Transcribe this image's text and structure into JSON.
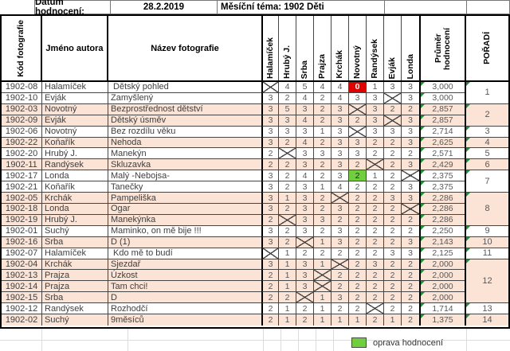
{
  "header_bar": {
    "datum_label": "Datum hodnocení:",
    "datum_value": "28.2.2019",
    "tema": "Měsíční téma: 1902 Děti"
  },
  "table": {
    "col_headers": {
      "code": "Kód fotografie",
      "author": "Jméno autora",
      "title": "Název fotografie",
      "judges": [
        "Halamíček",
        "Hrubý J.",
        "Srba",
        "Prajza",
        "Krchák",
        "Novotný",
        "Randýsek",
        "Evják",
        "Londa"
      ],
      "average": "Průměr hodnocení",
      "rank": "POŘADÍ"
    },
    "rows": [
      {
        "code": "1902-08",
        "author": "Halamíček",
        "title": " Dětský pohled",
        "scores": [
          "X",
          "4",
          "5",
          "4",
          "4",
          {
            "v": "0",
            "hl": "red"
          },
          "1",
          "3",
          "3"
        ],
        "avg": "3,000",
        "shade": false,
        "rank": {
          "label": "1",
          "span": 2
        }
      },
      {
        "code": "1902-10",
        "author": "Evják",
        "title": "Zamyšlený",
        "scores": [
          "3",
          "2",
          "4",
          "2",
          "4",
          "3",
          "3",
          "X",
          "3"
        ],
        "avg": "3,000",
        "shade": false
      },
      {
        "code": "1902-03",
        "author": "Novotný",
        "title": "Bezprostřednost dětství",
        "scores": [
          "3",
          "5",
          "3",
          "2",
          "3",
          "X",
          "3",
          "2",
          "2"
        ],
        "avg": "2,857",
        "shade": true,
        "rank": {
          "label": "2",
          "span": 2
        }
      },
      {
        "code": "1902-09",
        "author": "Evják",
        "title": "Dětský úsměv",
        "scores": [
          "3",
          "3",
          "4",
          "2",
          "3",
          "2",
          "3",
          "X",
          "3"
        ],
        "avg": "2,857",
        "shade": true
      },
      {
        "code": "1902-06",
        "author": "Novotný",
        "title": "Bez rozdílu věku",
        "scores": [
          "3",
          "3",
          "3",
          "1",
          "3",
          "X",
          "3",
          "3",
          "3"
        ],
        "avg": "2,714",
        "shade": false,
        "rank": {
          "label": "3",
          "span": 1
        }
      },
      {
        "code": "1902-22",
        "author": "Koňařík",
        "title": "Nehoda",
        "scores": [
          "3",
          "2",
          "4",
          "2",
          "3",
          "3",
          "2",
          "2",
          "3"
        ],
        "avg": "2,625",
        "shade": true,
        "rank": {
          "label": "4",
          "span": 1
        }
      },
      {
        "code": "1902-20",
        "author": "Hrubý J.",
        "title": "Manekýn",
        "scores": [
          "2",
          "X",
          "3",
          "3",
          "3",
          "3",
          "2",
          "2",
          "2"
        ],
        "avg": "2,571",
        "shade": false,
        "rank": {
          "label": "5",
          "span": 1
        }
      },
      {
        "code": "1902-11",
        "author": "Randýsek",
        "title": "Skluzavka",
        "scores": [
          "2",
          "2",
          "3",
          "2",
          "3",
          "2",
          "X",
          "2",
          "3"
        ],
        "avg": "2,429",
        "shade": true,
        "rank": {
          "label": "6",
          "span": 1
        }
      },
      {
        "code": "1902-17",
        "author": "Londa",
        "title": "Malý -Nebojsa-",
        "scores": [
          "3",
          "2",
          "4",
          "2",
          "3",
          {
            "v": "2",
            "hl": "green"
          },
          "1",
          "2",
          "X"
        ],
        "avg": "2,375",
        "shade": false,
        "rank": {
          "label": "7",
          "span": 2
        }
      },
      {
        "code": "1902-21",
        "author": "Koňařík",
        "title": "Tanečky",
        "scores": [
          "3",
          "2",
          "3",
          "1",
          "4",
          "2",
          "2",
          "2",
          "3"
        ],
        "avg": "2,375",
        "shade": false
      },
      {
        "code": "1902-05",
        "author": "Krchák",
        "title": "Pampeliška",
        "scores": [
          "3",
          "1",
          "3",
          "2",
          "X",
          "2",
          "2",
          "3",
          "3"
        ],
        "avg": "2,286",
        "shade": true,
        "rank": {
          "label": "8",
          "span": 3
        }
      },
      {
        "code": "1902-18",
        "author": "Londa",
        "title": "Ogar",
        "scores": [
          "3",
          "2",
          "3",
          "2",
          "3",
          "2",
          "2",
          "2",
          "X"
        ],
        "avg": "2,286",
        "shade": true
      },
      {
        "code": "1902-19",
        "author": "Hrubý J.",
        "title": "Manekýnka",
        "scores": [
          "2",
          "X",
          "3",
          "3",
          "2",
          "2",
          "2",
          "2",
          "2"
        ],
        "avg": "2,286",
        "shade": true
      },
      {
        "code": "1902-01",
        "author": "Suchý",
        "title": "Maminko, on mě bije !!!",
        "scores": [
          "3",
          "2",
          "3",
          "2",
          "3",
          "2",
          "2",
          "2",
          "2"
        ],
        "avg": "2,250",
        "shade": false,
        "rank": {
          "label": "9",
          "span": 1
        }
      },
      {
        "code": "1902-16",
        "author": "Srba",
        "title": "D (1)",
        "scores": [
          "3",
          "2",
          "X",
          "1",
          "3",
          "2",
          "2",
          "2",
          "3"
        ],
        "avg": "2,143",
        "shade": true,
        "rank": {
          "label": "10",
          "span": 1
        }
      },
      {
        "code": "1902-07",
        "author": "Halamíček",
        "title": " Kdo mě to budí",
        "scores": [
          "X",
          "1",
          "2",
          "2",
          "2",
          "2",
          "2",
          "3",
          "3"
        ],
        "avg": "2,125",
        "shade": false,
        "rank": {
          "label": "11",
          "span": 1
        }
      },
      {
        "code": "1902-04",
        "author": "Krchák",
        "title": "Sjezdař",
        "scores": [
          "3",
          "1",
          "3",
          "1",
          "X",
          "2",
          "3",
          "2",
          "2"
        ],
        "avg": "2,000",
        "shade": true,
        "rank": {
          "label": "12",
          "span": 4
        }
      },
      {
        "code": "1902-13",
        "author": "Prajza",
        "title": "Úzkost",
        "scores": [
          "2",
          "1",
          "3",
          "X",
          "2",
          "2",
          "2",
          "2",
          "2"
        ],
        "avg": "2,000",
        "shade": true
      },
      {
        "code": "1902-14",
        "author": "Prajza",
        "title": "Tam chci!",
        "scores": [
          "2",
          "1",
          "3",
          "X",
          "2",
          "2",
          "2",
          "2",
          "2"
        ],
        "avg": "2,000",
        "shade": true
      },
      {
        "code": "1902-15",
        "author": "Srba",
        "title": "D",
        "scores": [
          "2",
          "2",
          "X",
          "1",
          "3",
          "2",
          "2",
          "2",
          "2"
        ],
        "avg": "2,000",
        "shade": true
      },
      {
        "code": "1902-12",
        "author": "Randýsek",
        "title": "Rozhodčí",
        "scores": [
          "2",
          "1",
          "2",
          "1",
          "2",
          "2",
          "X",
          "2",
          "2"
        ],
        "avg": "1,714",
        "shade": false,
        "rank": {
          "label": "13",
          "span": 1
        }
      },
      {
        "code": "1902-02",
        "author": "Suchý",
        "title": "9měsíců",
        "scores": [
          "2",
          "1",
          "2",
          "1",
          "1",
          "1",
          "2",
          "1",
          "2"
        ],
        "avg": "1,375",
        "shade": true,
        "rank": {
          "label": "14",
          "span": 1
        }
      }
    ]
  },
  "legend": {
    "label": "oprava hodnocení"
  },
  "colors": {
    "score_zero_bg": "#df0000",
    "corrected_bg": "#71cf3f",
    "row_shade": "#fbe3d5",
    "indicator_green": "#1f8f39"
  }
}
